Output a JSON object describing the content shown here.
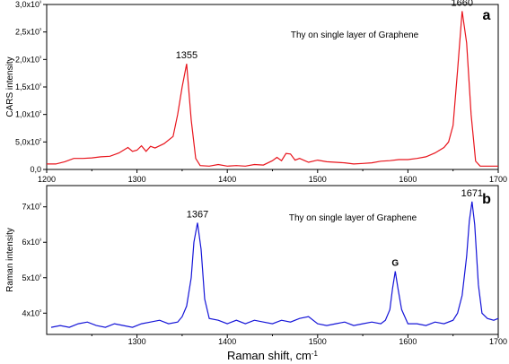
{
  "chart_data": [
    {
      "type": "line",
      "panel_letter": "a",
      "title": "Thy on single layer of Graphene",
      "xlabel": "",
      "ylabel": "CARS intensity",
      "xlim": [
        1200,
        1700
      ],
      "ylim": [
        0,
        3000
      ],
      "x_ticks": [
        "1200",
        "1300",
        "1400",
        "1500",
        "1600",
        "1700"
      ],
      "y_ticks": [
        {
          "value": 0,
          "label": "0,0"
        },
        {
          "value": 500,
          "label": "5,0x10²"
        },
        {
          "value": 1000,
          "label": "1,0x10³"
        },
        {
          "value": 1500,
          "label": "1,5x10³"
        },
        {
          "value": 2000,
          "label": "2,0x10³"
        },
        {
          "value": 2500,
          "label": "2,5x10³"
        },
        {
          "value": 3000,
          "label": "3,0x10³"
        }
      ],
      "series_color": "#e8141c",
      "peak_labels": [
        {
          "x": 1355,
          "y": 1920,
          "text": "1355"
        },
        {
          "x": 1660,
          "y": 2880,
          "text": "1660"
        }
      ],
      "series": [
        {
          "name": "",
          "x": [
            1200,
            1210,
            1220,
            1230,
            1240,
            1250,
            1260,
            1270,
            1280,
            1290,
            1295,
            1300,
            1305,
            1310,
            1315,
            1320,
            1330,
            1340,
            1345,
            1350,
            1355,
            1360,
            1365,
            1370,
            1380,
            1390,
            1400,
            1410,
            1420,
            1430,
            1440,
            1450,
            1455,
            1460,
            1465,
            1470,
            1475,
            1480,
            1490,
            1500,
            1510,
            1520,
            1530,
            1540,
            1550,
            1560,
            1570,
            1580,
            1590,
            1600,
            1610,
            1620,
            1630,
            1640,
            1645,
            1650,
            1655,
            1660,
            1665,
            1670,
            1675,
            1680,
            1690,
            1700
          ],
          "y": [
            100,
            100,
            140,
            200,
            200,
            210,
            230,
            240,
            300,
            400,
            330,
            350,
            430,
            330,
            420,
            390,
            470,
            600,
            1000,
            1500,
            1920,
            900,
            200,
            70,
            60,
            90,
            60,
            70,
            60,
            90,
            80,
            160,
            220,
            160,
            290,
            280,
            170,
            200,
            130,
            170,
            140,
            130,
            120,
            100,
            110,
            120,
            150,
            160,
            180,
            180,
            200,
            230,
            300,
            400,
            500,
            800,
            1800,
            2880,
            2300,
            1000,
            150,
            60,
            60,
            60
          ]
        }
      ]
    },
    {
      "type": "line",
      "panel_letter": "b",
      "title": "Thy on single layer of Graphene",
      "xlabel": "Raman shift, cm⁻¹",
      "ylabel": "Raman intensity",
      "xlim": [
        1200,
        1700
      ],
      "ylim": [
        3400,
        7600
      ],
      "x_ticks": [
        "1300",
        "1400",
        "1500",
        "1600",
        "1700"
      ],
      "y_ticks": [
        {
          "value": 4000,
          "label": "4x10³"
        },
        {
          "value": 5000,
          "label": "5x10³"
        },
        {
          "value": 6000,
          "label": "6x10³"
        },
        {
          "value": 7000,
          "label": "7x10³"
        }
      ],
      "series_color": "#1515d8",
      "peak_labels": [
        {
          "x": 1367,
          "y": 6550,
          "text": "1367"
        },
        {
          "x": 1586,
          "y": 5180,
          "text": "G"
        },
        {
          "x": 1671,
          "y": 7150,
          "text": "1671"
        }
      ],
      "series": [
        {
          "name": "",
          "x": [
            1205,
            1215,
            1225,
            1235,
            1245,
            1255,
            1265,
            1275,
            1285,
            1295,
            1305,
            1315,
            1325,
            1335,
            1345,
            1350,
            1355,
            1360,
            1363,
            1367,
            1371,
            1375,
            1380,
            1390,
            1400,
            1410,
            1420,
            1430,
            1440,
            1450,
            1460,
            1470,
            1480,
            1490,
            1500,
            1510,
            1520,
            1530,
            1540,
            1550,
            1560,
            1570,
            1575,
            1580,
            1583,
            1586,
            1589,
            1593,
            1600,
            1610,
            1620,
            1630,
            1640,
            1650,
            1655,
            1660,
            1665,
            1668,
            1671,
            1674,
            1678,
            1682,
            1688,
            1695,
            1700
          ],
          "y": [
            3600,
            3650,
            3600,
            3700,
            3750,
            3650,
            3600,
            3700,
            3650,
            3600,
            3700,
            3750,
            3800,
            3700,
            3750,
            3900,
            4200,
            5000,
            6000,
            6550,
            5800,
            4400,
            3850,
            3800,
            3700,
            3800,
            3700,
            3800,
            3750,
            3700,
            3800,
            3750,
            3850,
            3900,
            3700,
            3650,
            3700,
            3750,
            3650,
            3700,
            3750,
            3700,
            3800,
            4100,
            4700,
            5180,
            4700,
            4100,
            3700,
            3700,
            3650,
            3750,
            3700,
            3800,
            4000,
            4500,
            5600,
            6600,
            7150,
            6500,
            4800,
            4000,
            3850,
            3800,
            3850
          ]
        }
      ]
    }
  ]
}
